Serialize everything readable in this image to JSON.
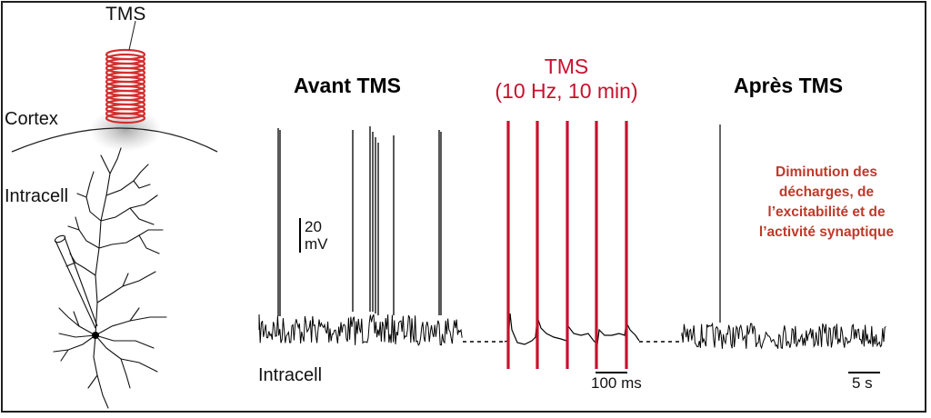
{
  "labels": {
    "tms_coil": "TMS",
    "cortex": "Cortex",
    "intracell_pipette": "Intracell",
    "intracell_trace": "Intracell"
  },
  "titles": {
    "before": "Avant TMS",
    "during_line1": "TMS",
    "during_line2": "(10 Hz, 10 min)",
    "after": "Après TMS"
  },
  "scale_bars": {
    "voltage_value": "20",
    "voltage_unit": "mV",
    "time_short": "100 ms",
    "time_long": "5 s"
  },
  "annotation": {
    "lines": [
      "Diminution des",
      "décharges, de",
      "l’excitabilité et de",
      "l’activité synaptique"
    ]
  },
  "colors": {
    "tms_red": "#c8102e",
    "annotation_red": "#c0392b",
    "trace": "#000000"
  }
}
